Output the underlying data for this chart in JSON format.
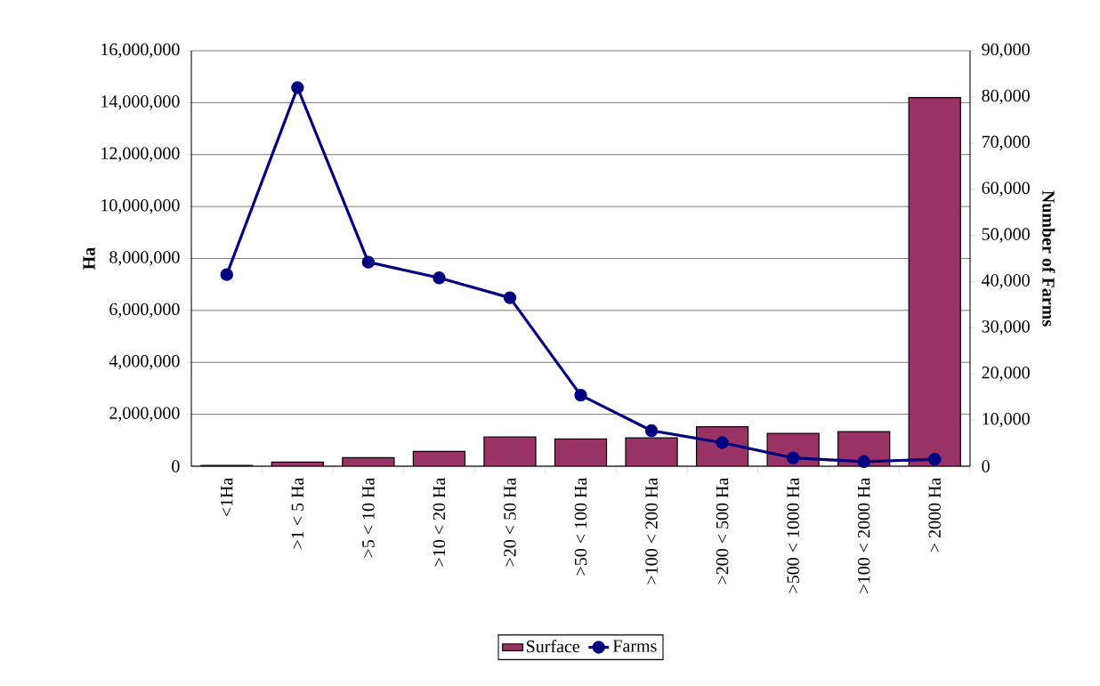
{
  "chart_data": {
    "type": "bar",
    "ylabel": "Ha",
    "y2label": "Number of Farms",
    "categories": [
      "<1Ha",
      ">1 < 5 Ha",
      ">5 < 10 Ha",
      ">10 < 20 Ha",
      ">20 < 50 Ha",
      ">50 < 100 Ha",
      ">100 < 200 Ha",
      ">200 < 500 Ha",
      ">500 < 1000 Ha",
      ">100 < 2000 Ha",
      "> 2000 Ha"
    ],
    "series": [
      {
        "name": "Surface",
        "color": "#993366",
        "values": [
          30000,
          160000,
          330000,
          570000,
          1130000,
          1050000,
          1090000,
          1520000,
          1260000,
          1330000,
          14200000
        ]
      },
      {
        "name": "Farms",
        "type": "line",
        "axis": "y2",
        "color": "#000080",
        "values": [
          41500,
          82000,
          44200,
          40800,
          36500,
          15400,
          7700,
          5100,
          1800,
          1000,
          1500
        ]
      }
    ],
    "ylim": [
      0,
      16000000
    ],
    "yticks": [
      {
        "value": 0,
        "label": "0"
      },
      {
        "value": 2000000,
        "label": "2,000,000"
      },
      {
        "value": 4000000,
        "label": "4,000,000"
      },
      {
        "value": 6000000,
        "label": "6,000,000"
      },
      {
        "value": 8000000,
        "label": "8,000,000"
      },
      {
        "value": 10000000,
        "label": "10,000,000"
      },
      {
        "value": 12000000,
        "label": "12,000,000"
      },
      {
        "value": 14000000,
        "label": "14,000,000"
      },
      {
        "value": 16000000,
        "label": "16,000,000"
      }
    ],
    "y2lim": [
      0,
      90000
    ],
    "y2ticks": [
      {
        "value": 0,
        "label": "0"
      },
      {
        "value": 10000,
        "label": "10,000"
      },
      {
        "value": 20000,
        "label": "20,000"
      },
      {
        "value": 30000,
        "label": "30,000"
      },
      {
        "value": 40000,
        "label": "40,000"
      },
      {
        "value": 50000,
        "label": "50,000"
      },
      {
        "value": 60000,
        "label": "60,000"
      },
      {
        "value": 70000,
        "label": "70,000"
      },
      {
        "value": 80000,
        "label": "80,000"
      },
      {
        "value": 90000,
        "label": "90,000"
      }
    ],
    "grid": "y",
    "legend": "bottom",
    "marker": "circle"
  }
}
